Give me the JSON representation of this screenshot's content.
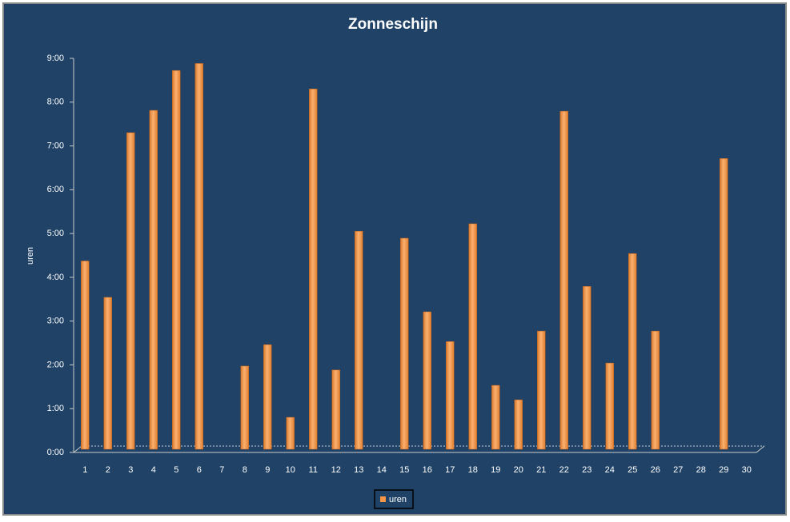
{
  "chart_data": {
    "type": "bar",
    "title": "Zonneschijn",
    "y_label": "uren",
    "categories": [
      "1",
      "2",
      "3",
      "4",
      "5",
      "6",
      "7",
      "8",
      "9",
      "10",
      "11",
      "12",
      "13",
      "14",
      "15",
      "16",
      "17",
      "18",
      "19",
      "20",
      "21",
      "22",
      "23",
      "24",
      "25",
      "26",
      "27",
      "28",
      "29",
      "30"
    ],
    "series": [
      {
        "name": "uren",
        "color": "#f79646",
        "values": [
          4.3,
          3.47,
          7.23,
          7.74,
          8.65,
          8.81,
          null,
          1.9,
          2.39,
          0.73,
          8.23,
          1.81,
          4.98,
          null,
          4.82,
          3.14,
          2.46,
          5.15,
          1.46,
          1.13,
          2.7,
          7.72,
          3.72,
          1.97,
          4.47,
          2.7,
          null,
          null,
          6.64,
          null
        ]
      }
    ],
    "ylim": [
      0,
      9
    ],
    "yticks": [
      {
        "value": 0,
        "label": "0:00"
      },
      {
        "value": 1,
        "label": "1:00"
      },
      {
        "value": 2,
        "label": "2:00"
      },
      {
        "value": 3,
        "label": "3:00"
      },
      {
        "value": 4,
        "label": "4:00"
      },
      {
        "value": 5,
        "label": "5:00"
      },
      {
        "value": 6,
        "label": "6:00"
      },
      {
        "value": 7,
        "label": "7:00"
      },
      {
        "value": 8,
        "label": "8:00"
      },
      {
        "value": 9,
        "label": "9:00"
      }
    ]
  }
}
